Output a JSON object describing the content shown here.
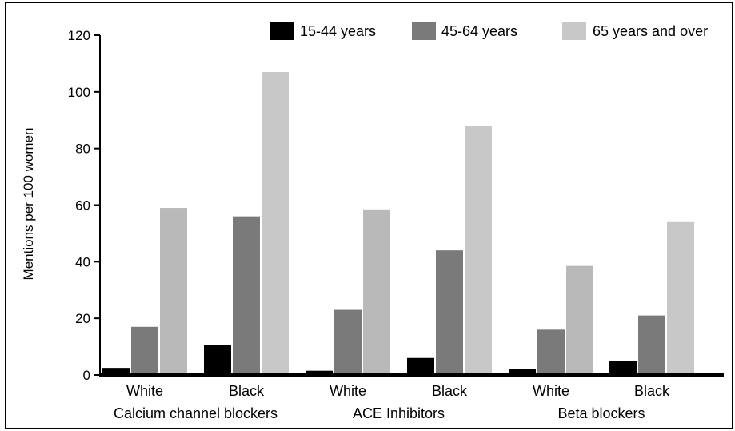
{
  "chart_data": {
    "type": "bar",
    "title": "",
    "xlabel": "",
    "ylabel": "Mentions per 100 women",
    "ylim": [
      0,
      120
    ],
    "yticks": [
      "0",
      "20",
      "40",
      "60",
      "80",
      "100",
      "120"
    ],
    "groups": [
      {
        "label": "Calcium channel blockers",
        "subcategories": [
          "White",
          "Black"
        ]
      },
      {
        "label": "ACE Inhibitors",
        "subcategories": [
          "White",
          "Black"
        ]
      },
      {
        "label": "Beta blockers",
        "subcategories": [
          "White",
          "Black"
        ]
      }
    ],
    "categories": [
      "Calcium channel blockers - White",
      "Calcium channel blockers - Black",
      "ACE Inhibitors - White",
      "ACE Inhibitors - Black",
      "Beta blockers - White",
      "Beta blockers - Black"
    ],
    "series": [
      {
        "name": "15-44 years",
        "color": "#000000",
        "values": [
          2.5,
          10.5,
          1.5,
          6,
          2,
          5
        ]
      },
      {
        "name": "45-64 years",
        "color": "#7a7a7a",
        "values": [
          17,
          56,
          23,
          44,
          16,
          21
        ]
      },
      {
        "name": "65 years and over",
        "color": "#c8c8c8",
        "values": [
          59,
          107,
          58.5,
          88,
          38.5,
          54
        ]
      }
    ],
    "legend": "top-right",
    "grid": false
  }
}
